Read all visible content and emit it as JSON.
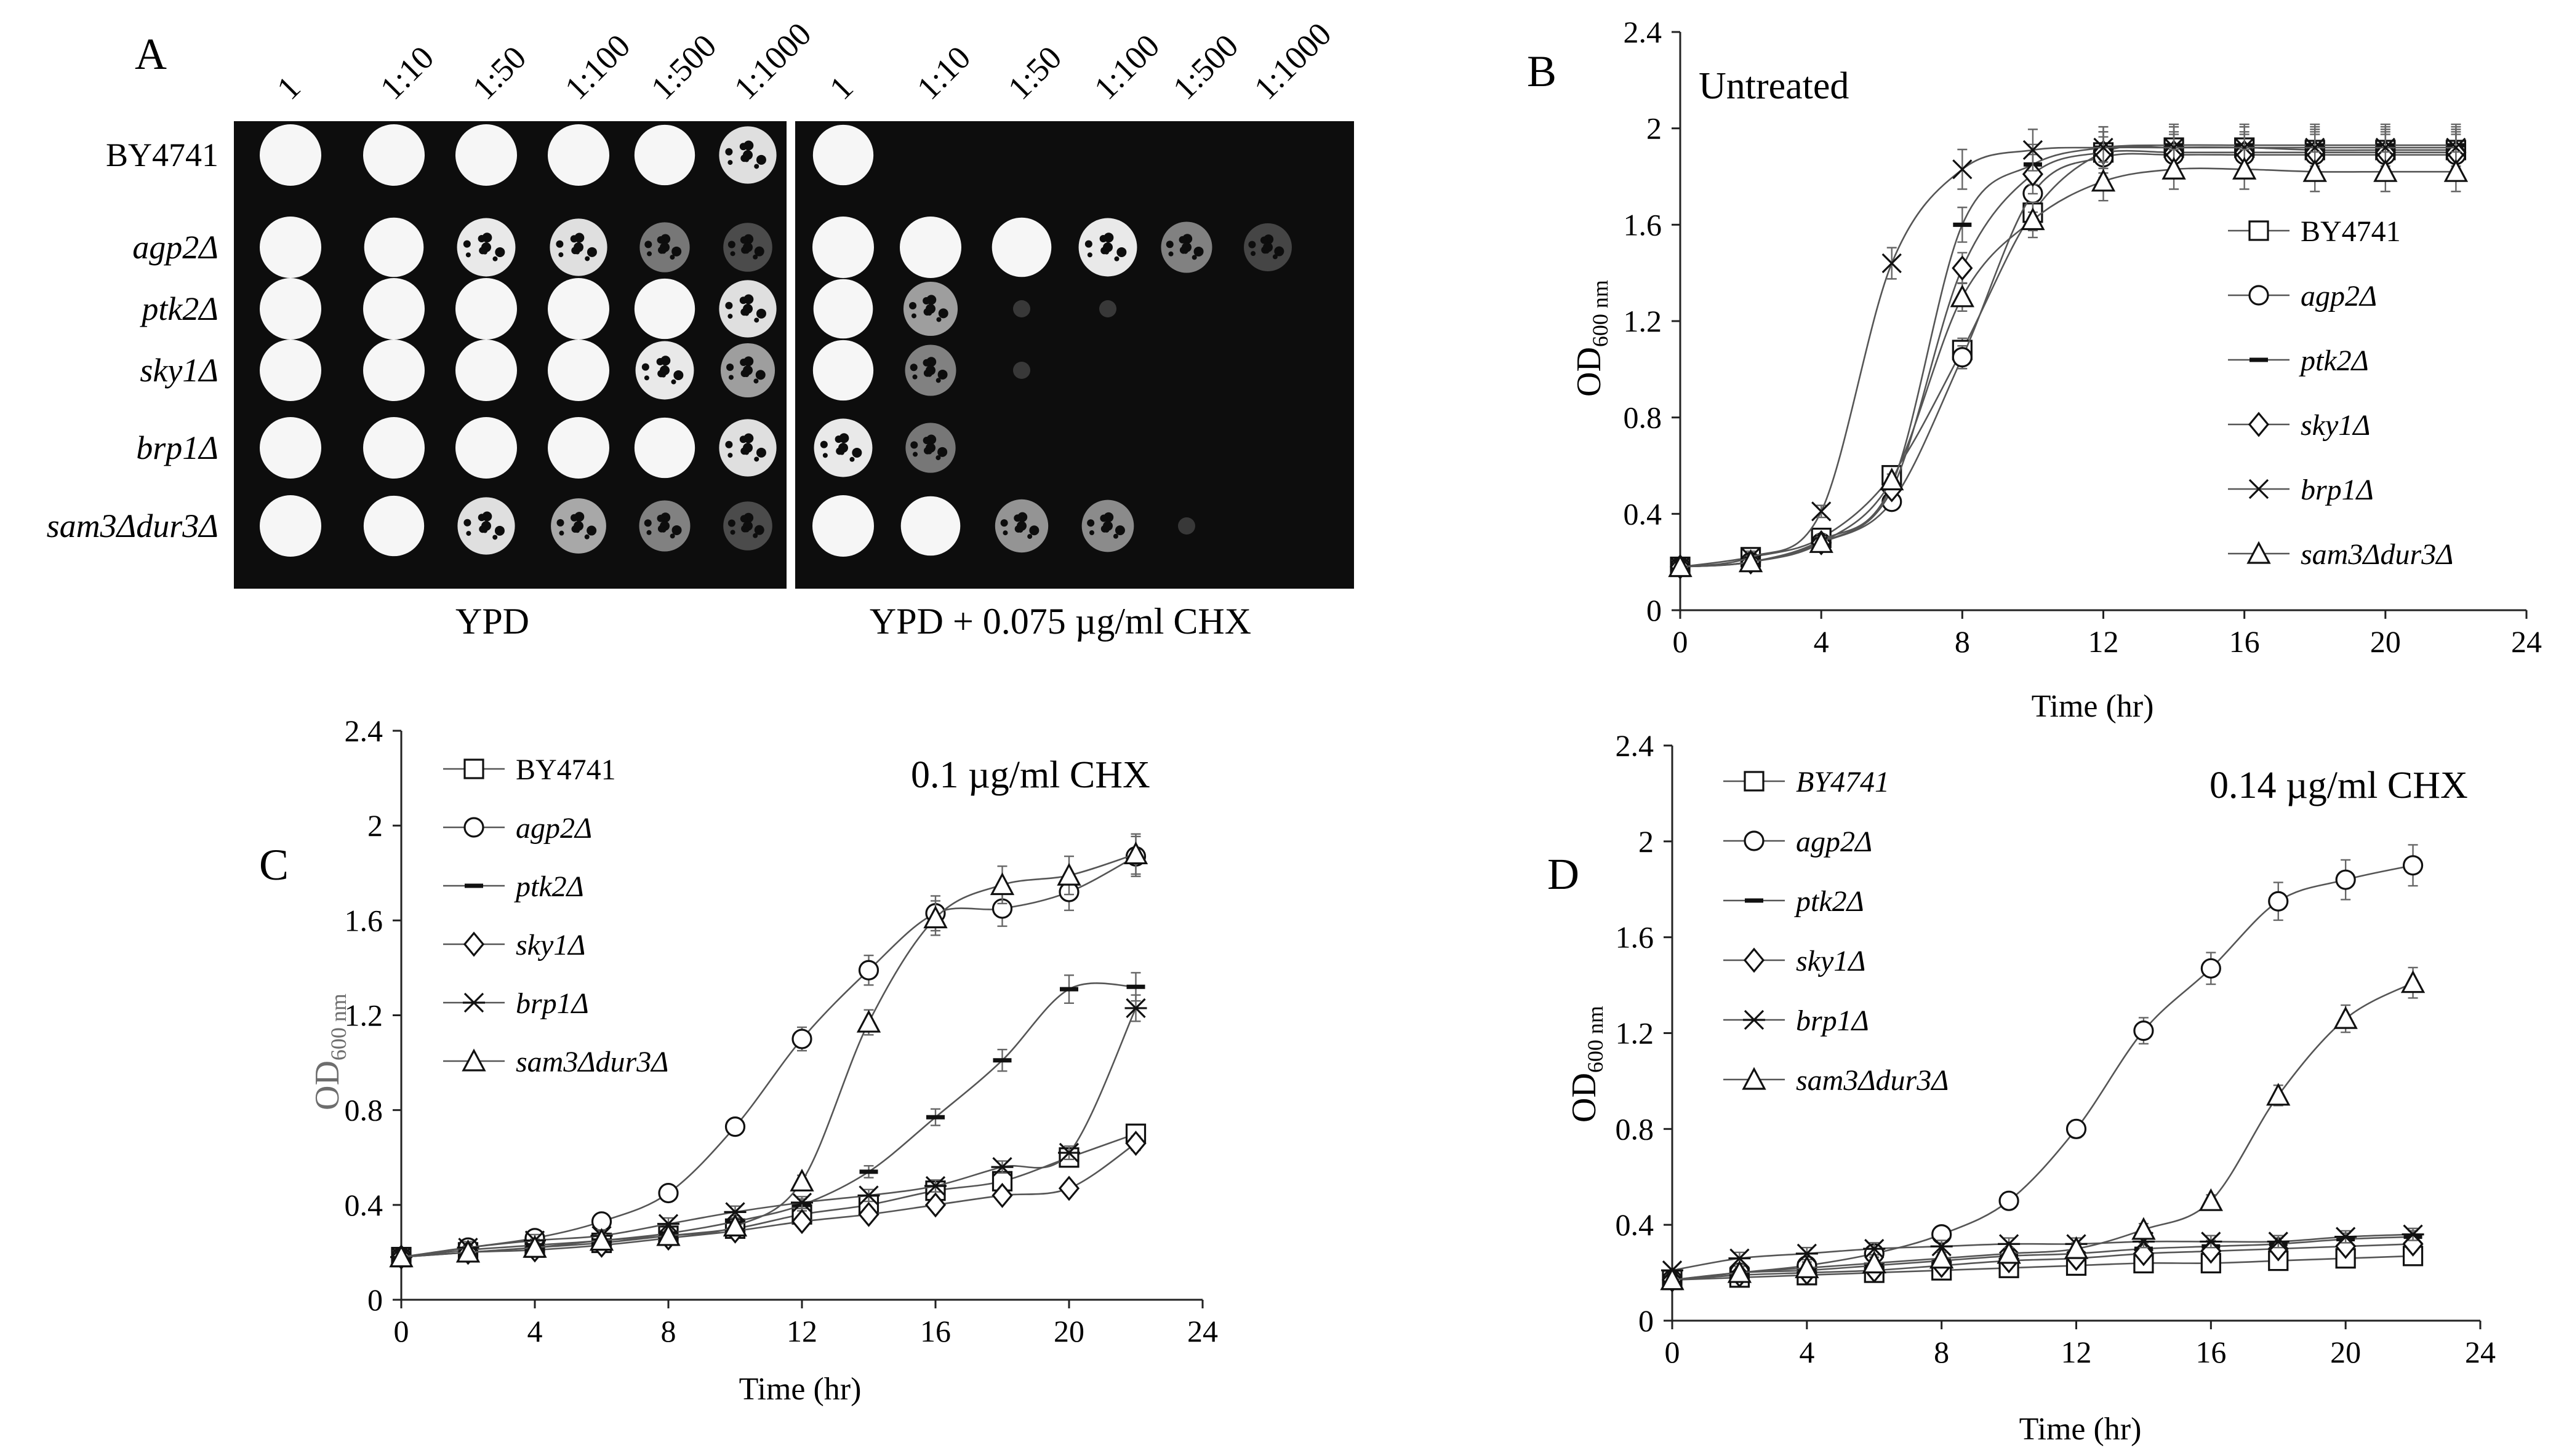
{
  "panel_a": {
    "letter": "A",
    "dilutions": [
      "1",
      "1:10",
      "1:50",
      "1:100",
      "1:500",
      "1:1000"
    ],
    "strains": [
      "BY4741",
      "agp2Δ",
      "ptk2Δ",
      "sky1Δ",
      "brp1Δ",
      "sam3Δdur3Δ"
    ],
    "plates": [
      {
        "label": "YPD",
        "growth": [
          [
            1,
            1,
            1,
            1,
            0.8,
            0.65
          ],
          [
            0.85,
            0.75,
            0.7,
            0.65,
            0.3,
            0.25
          ],
          [
            1,
            1,
            1,
            1,
            0.8,
            0.65
          ],
          [
            1,
            0.95,
            0.9,
            0.85,
            0.7,
            0.5
          ],
          [
            1,
            1,
            1,
            1,
            0.8,
            0.65
          ],
          [
            1,
            0.8,
            0.65,
            0.55,
            0.35,
            0.25
          ]
        ]
      },
      {
        "label": "YPD + 0.075 µg/ml CHX",
        "growth": [
          [
            0.8,
            0,
            0,
            0,
            0,
            0
          ],
          [
            1,
            0.85,
            0.75,
            0.7,
            0.35,
            0.2
          ],
          [
            0.75,
            0.5,
            0.08,
            0.06,
            0,
            0
          ],
          [
            0.8,
            0.35,
            0.03,
            0,
            0,
            0
          ],
          [
            0.7,
            0.3,
            0,
            0,
            0,
            0
          ],
          [
            1,
            0.75,
            0.45,
            0.4,
            0.05,
            0
          ]
        ]
      }
    ]
  },
  "chart_data": [
    {
      "panel": "B",
      "type": "line",
      "annotation": "Untreated",
      "xlabel": "Time (hr)",
      "ylabel": "OD",
      "ylabel_sub": "600 nm",
      "xlim": [
        0,
        24
      ],
      "ylim": [
        0,
        2.4
      ],
      "xticks": [
        0,
        4,
        8,
        12,
        16,
        20,
        24
      ],
      "yticks": [
        0,
        0.4,
        0.8,
        1.2,
        1.6,
        2,
        2.4
      ],
      "x": [
        0,
        2,
        4,
        6,
        8,
        10,
        12,
        14,
        16,
        18,
        20,
        22
      ],
      "legend_position": "middle-right",
      "series": [
        {
          "name": "BY4741",
          "marker": "square",
          "values": [
            0.18,
            0.22,
            0.3,
            0.56,
            1.08,
            1.65,
            1.9,
            1.92,
            1.92,
            1.91,
            1.91,
            1.91
          ]
        },
        {
          "name": "agp2Δ",
          "marker": "circle",
          "values": [
            0.18,
            0.2,
            0.28,
            0.45,
            1.05,
            1.73,
            1.88,
            1.89,
            1.89,
            1.89,
            1.89,
            1.89
          ]
        },
        {
          "name": "ptk2Δ",
          "marker": "dash",
          "values": [
            0.18,
            0.2,
            0.29,
            0.52,
            1.6,
            1.85,
            1.92,
            1.93,
            1.93,
            1.93,
            1.93,
            1.93
          ]
        },
        {
          "name": "sky1Δ",
          "marker": "diamond",
          "values": [
            0.18,
            0.2,
            0.28,
            0.5,
            1.42,
            1.81,
            1.9,
            1.9,
            1.9,
            1.9,
            1.9,
            1.9
          ]
        },
        {
          "name": "brp1Δ",
          "marker": "x",
          "values": [
            0.18,
            0.22,
            0.41,
            1.44,
            1.83,
            1.91,
            1.92,
            1.92,
            1.92,
            1.92,
            1.92,
            1.92
          ]
        },
        {
          "name": "sam3Δdur3Δ",
          "marker": "triangle",
          "values": [
            0.18,
            0.2,
            0.28,
            0.54,
            1.3,
            1.62,
            1.78,
            1.83,
            1.83,
            1.82,
            1.82,
            1.82
          ]
        }
      ]
    },
    {
      "panel": "C",
      "type": "line",
      "annotation": "0.1 µg/ml CHX",
      "xlabel": "Time (hr)",
      "ylabel": "OD",
      "ylabel_sub": "600 nm",
      "xlim": [
        0,
        24
      ],
      "ylim": [
        0,
        2.4
      ],
      "xticks": [
        0,
        4,
        8,
        12,
        16,
        20,
        24
      ],
      "yticks": [
        0,
        0.4,
        0.8,
        1.2,
        1.6,
        2,
        2.4
      ],
      "x": [
        0,
        2,
        4,
        6,
        8,
        10,
        12,
        14,
        16,
        18,
        20,
        22
      ],
      "legend_position": "top-left",
      "series": [
        {
          "name": "BY4741",
          "marker": "square",
          "values": [
            0.18,
            0.2,
            0.22,
            0.24,
            0.27,
            0.3,
            0.36,
            0.4,
            0.46,
            0.5,
            0.6,
            0.7
          ]
        },
        {
          "name": "agp2Δ",
          "marker": "circle",
          "values": [
            0.18,
            0.22,
            0.26,
            0.33,
            0.45,
            0.73,
            1.1,
            1.39,
            1.63,
            1.65,
            1.72,
            1.87
          ]
        },
        {
          "name": "ptk2Δ",
          "marker": "dash",
          "values": [
            0.18,
            0.21,
            0.23,
            0.25,
            0.28,
            0.33,
            0.4,
            0.54,
            0.77,
            1.01,
            1.31,
            1.32
          ]
        },
        {
          "name": "sky1Δ",
          "marker": "diamond",
          "values": [
            0.18,
            0.2,
            0.21,
            0.23,
            0.26,
            0.29,
            0.33,
            0.36,
            0.4,
            0.44,
            0.47,
            0.66
          ]
        },
        {
          "name": "brp1Δ",
          "marker": "asterisk",
          "values": [
            0.18,
            0.22,
            0.25,
            0.27,
            0.32,
            0.37,
            0.41,
            0.44,
            0.48,
            0.56,
            0.62,
            1.23
          ]
        },
        {
          "name": "sam3Δdur3Δ",
          "marker": "triangle",
          "values": [
            0.18,
            0.2,
            0.22,
            0.25,
            0.27,
            0.31,
            0.5,
            1.17,
            1.61,
            1.75,
            1.79,
            1.88
          ]
        }
      ]
    },
    {
      "panel": "D",
      "type": "line",
      "annotation": "0.14 µg/ml CHX",
      "xlabel": "Time (hr)",
      "ylabel": "OD",
      "ylabel_sub": "600 nm",
      "xlim": [
        0,
        24
      ],
      "ylim": [
        0,
        2.4
      ],
      "xticks": [
        0,
        4,
        8,
        12,
        16,
        20,
        24
      ],
      "yticks": [
        0,
        0.4,
        0.8,
        1.2,
        1.6,
        2,
        2.4
      ],
      "x": [
        0,
        2,
        4,
        6,
        8,
        10,
        12,
        14,
        16,
        18,
        20,
        22
      ],
      "legend_position": "top-left",
      "series": [
        {
          "name": "BY4741",
          "marker": "square",
          "values": [
            0.17,
            0.18,
            0.19,
            0.2,
            0.21,
            0.22,
            0.23,
            0.24,
            0.24,
            0.25,
            0.26,
            0.27
          ]
        },
        {
          "name": "agp2Δ",
          "marker": "circle",
          "values": [
            0.17,
            0.2,
            0.23,
            0.28,
            0.36,
            0.5,
            0.8,
            1.21,
            1.47,
            1.75,
            1.84,
            1.9
          ]
        },
        {
          "name": "ptk2Δ",
          "marker": "dash",
          "values": [
            0.17,
            0.2,
            0.21,
            0.23,
            0.25,
            0.27,
            0.28,
            0.3,
            0.31,
            0.32,
            0.34,
            0.35
          ]
        },
        {
          "name": "sky1Δ",
          "marker": "diamond",
          "values": [
            0.17,
            0.19,
            0.2,
            0.21,
            0.23,
            0.25,
            0.26,
            0.28,
            0.29,
            0.3,
            0.31,
            0.32
          ]
        },
        {
          "name": "brp1Δ",
          "marker": "asterisk",
          "values": [
            0.21,
            0.26,
            0.28,
            0.3,
            0.31,
            0.32,
            0.32,
            0.33,
            0.33,
            0.33,
            0.35,
            0.36
          ]
        },
        {
          "name": "sam3Δdur3Δ",
          "marker": "triangle",
          "values": [
            0.17,
            0.2,
            0.22,
            0.24,
            0.26,
            0.28,
            0.3,
            0.38,
            0.5,
            0.94,
            1.26,
            1.41
          ]
        }
      ]
    }
  ]
}
